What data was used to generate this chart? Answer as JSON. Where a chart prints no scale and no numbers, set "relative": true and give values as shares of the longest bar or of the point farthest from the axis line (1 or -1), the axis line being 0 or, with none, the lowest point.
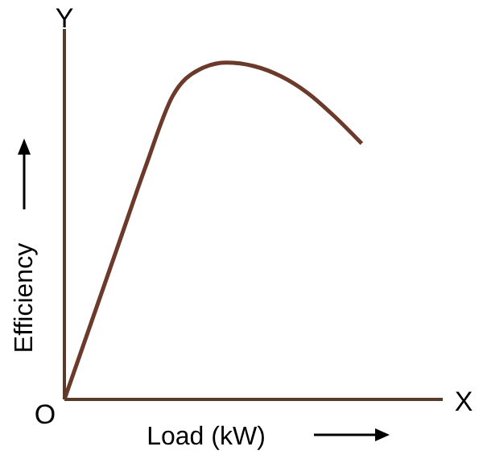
{
  "chart_data": {
    "type": "line",
    "relative": true,
    "xlabel": "Load (kW)",
    "ylabel": "Efficiency",
    "annotations": [
      "Y",
      "X",
      "O"
    ],
    "categories": [
      null,
      null,
      null,
      null,
      null,
      null,
      null,
      null,
      null,
      null,
      null,
      null,
      null,
      null,
      null
    ],
    "series": [
      {
        "color": "#6b3a2a",
        "values": [
          0,
          0.23,
          0.46,
          0.69,
          0.9,
          0.98,
          1,
          0.99,
          0.96,
          0.91,
          0.84,
          0.76,
          null,
          null,
          null
        ]
      }
    ],
    "marker": "none",
    "line_style": "solid",
    "grid": false,
    "legend": false
  }
}
